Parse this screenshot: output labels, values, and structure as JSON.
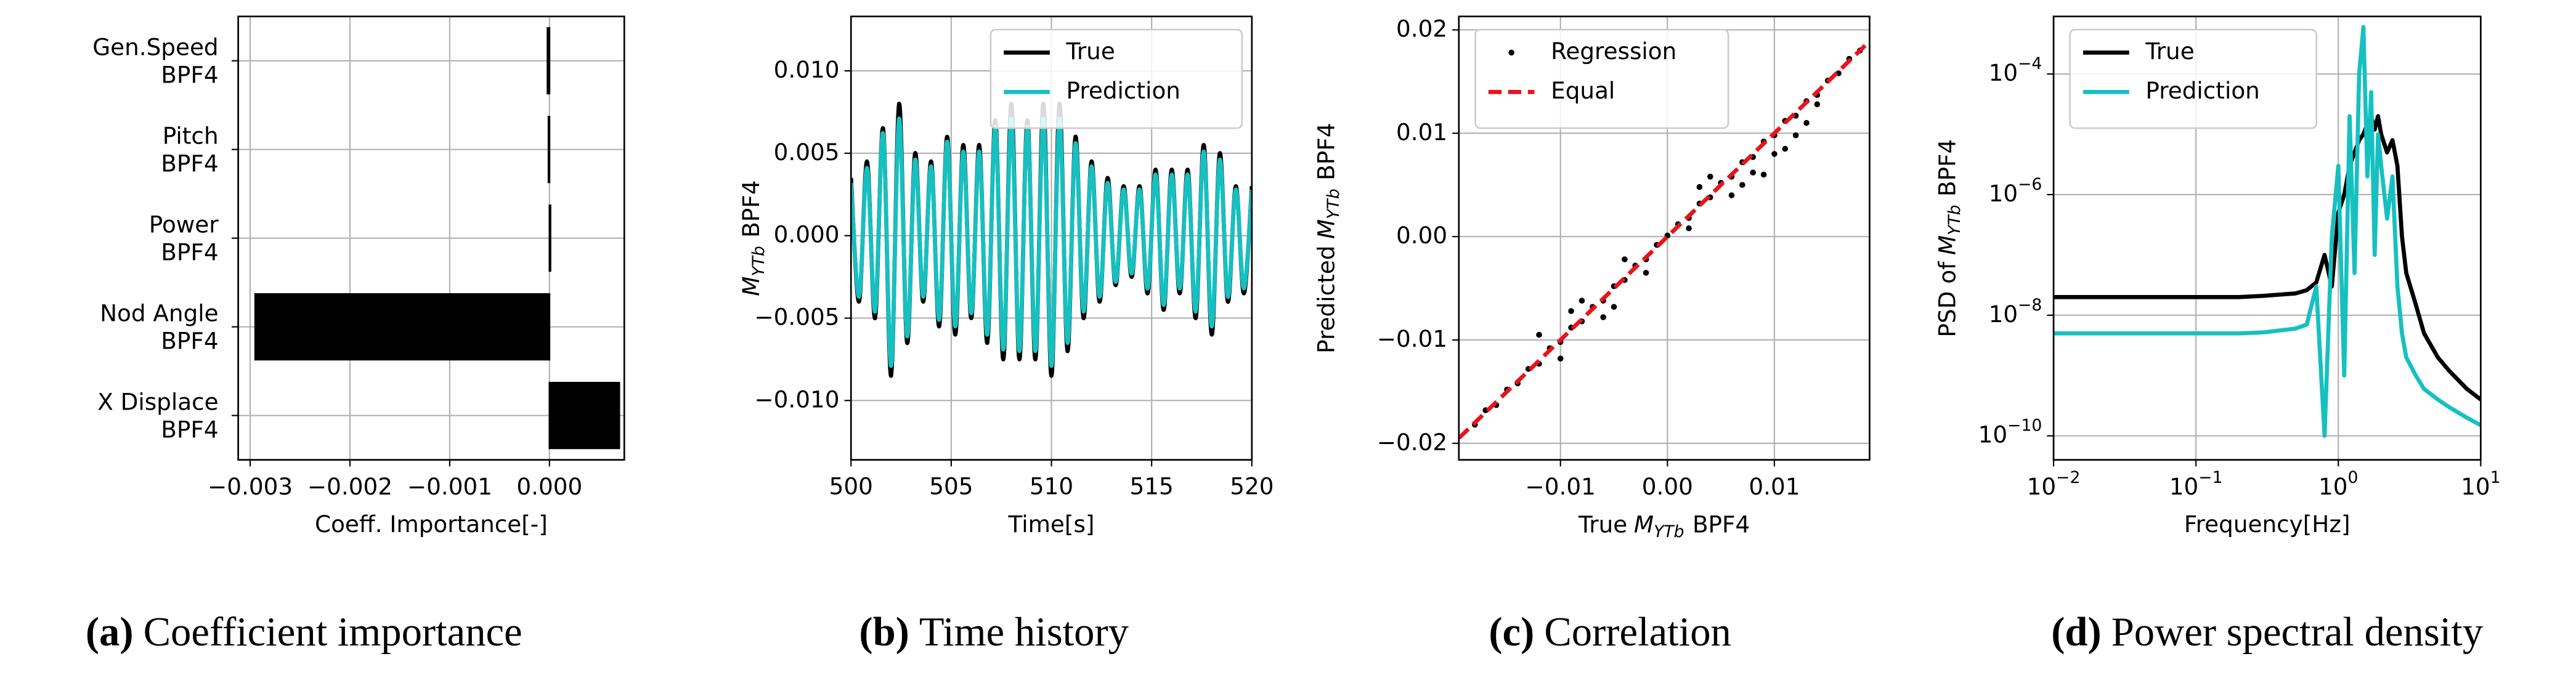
{
  "chart_data": [
    {
      "type": "barh",
      "caption_letter": "(a)",
      "caption": "Coefficient importance",
      "categories": [
        "Gen.Speed\nBPF4",
        "Pitch\nBPF4",
        "Power\nBPF4",
        "Nod Angle\nBPF4",
        "X Displace\nBPF4"
      ],
      "values": [
        -2e-05,
        -1e-05,
        1e-05,
        -0.00295,
        0.0007
      ],
      "color": "#000000",
      "xlabel": "Coeff. Importance[-]",
      "xlim": [
        -0.00312,
        0.00075
      ],
      "xticks": [
        {
          "value": -0.003,
          "label": "−0.003"
        },
        {
          "value": -0.002,
          "label": "−0.002"
        },
        {
          "value": -0.001,
          "label": "−0.001"
        },
        {
          "value": 0,
          "label": "0.000"
        }
      ],
      "grid": true
    },
    {
      "type": "line",
      "caption_letter": "(b)",
      "caption": "Time history",
      "xlabel": "Time[s]",
      "ylabel": {
        "symbol": "M",
        "subscript": "YTb",
        "text": "BPF4"
      },
      "x": [
        500,
        500.4,
        500.8,
        501.2,
        501.6,
        502,
        502.4,
        502.8,
        503.2,
        503.6,
        504,
        504.4,
        504.8,
        505.2,
        505.6,
        506,
        506.4,
        506.8,
        507.2,
        507.6,
        508,
        508.4,
        508.8,
        509.2,
        509.6,
        510,
        510.4,
        510.8,
        511.2,
        511.6,
        512,
        512.4,
        512.8,
        513.2,
        513.6,
        514,
        514.4,
        514.8,
        515.2,
        515.6,
        516,
        516.4,
        516.8,
        517.2,
        517.6,
        518,
        518.4,
        518.8,
        519.2,
        519.6,
        520
      ],
      "series": [
        {
          "name": "True",
          "color": "#000000",
          "values": [
            0.0035,
            -0.004,
            0.0045,
            -0.005,
            0.0065,
            -0.0085,
            0.008,
            -0.0065,
            0.005,
            -0.004,
            0.0045,
            -0.0055,
            0.006,
            -0.006,
            0.0055,
            -0.005,
            0.0055,
            -0.0065,
            0.007,
            -0.0075,
            0.008,
            -0.0075,
            0.007,
            -0.0075,
            0.008,
            -0.0085,
            0.008,
            -0.007,
            0.006,
            -0.005,
            0.0045,
            -0.004,
            0.0035,
            -0.003,
            0.003,
            -0.0025,
            0.003,
            -0.0035,
            0.004,
            -0.0045,
            0.004,
            -0.0035,
            0.004,
            -0.005,
            0.0055,
            -0.006,
            0.005,
            -0.004,
            0.003,
            -0.0035,
            0.003
          ]
        },
        {
          "name": "Prediction",
          "color": "#17c0c0",
          "values": [
            0.0032,
            -0.0037,
            0.0041,
            -0.0046,
            0.0062,
            -0.0079,
            0.0071,
            -0.0061,
            0.0046,
            -0.0037,
            0.0042,
            -0.0051,
            0.0057,
            -0.0055,
            0.0051,
            -0.0047,
            0.0051,
            -0.006,
            0.0066,
            -0.0069,
            0.0071,
            -0.007,
            0.0066,
            -0.007,
            0.0071,
            -0.0079,
            0.0071,
            -0.0065,
            0.0056,
            -0.0046,
            0.0042,
            -0.0037,
            0.0032,
            -0.0028,
            0.0028,
            -0.0023,
            0.0028,
            -0.0032,
            0.0037,
            -0.0042,
            0.0037,
            -0.0032,
            0.0037,
            -0.0046,
            0.0051,
            -0.0055,
            0.0046,
            -0.0037,
            0.0028,
            -0.0032,
            0.0028
          ]
        }
      ],
      "xlim": [
        500,
        520
      ],
      "xticks": [
        500,
        505,
        510,
        515,
        520
      ],
      "ylim": [
        -0.0136,
        0.0133
      ],
      "yticks": [
        {
          "value": -0.01,
          "label": "−0.010"
        },
        {
          "value": -0.005,
          "label": "−0.005"
        },
        {
          "value": 0,
          "label": "0.000"
        },
        {
          "value": 0.005,
          "label": "0.005"
        },
        {
          "value": 0.01,
          "label": "0.010"
        }
      ],
      "grid": true,
      "legend": "upper right"
    },
    {
      "type": "scatter",
      "caption_letter": "(c)",
      "caption": "Correlation",
      "xlabel": {
        "prefix": "True",
        "symbol": "M",
        "subscript": "YTb",
        "text": "BPF4"
      },
      "ylabel": {
        "prefix": "Predicted",
        "symbol": "M",
        "subscript": "YTb",
        "text": "BPF4"
      },
      "series": [
        {
          "name": "Regression",
          "color": "#000000",
          "marker": "dot",
          "x": [
            -0.018,
            -0.017,
            -0.016,
            -0.015,
            -0.014,
            -0.013,
            -0.012,
            -0.011,
            -0.01,
            -0.009,
            -0.008,
            -0.007,
            -0.006,
            -0.005,
            -0.004,
            -0.003,
            -0.002,
            -0.001,
            0,
            0.001,
            0.002,
            0.003,
            0.004,
            0.005,
            0.006,
            0.007,
            0.008,
            0.009,
            0.01,
            0.011,
            0.012,
            0.013,
            0.014,
            0.015,
            0.016,
            0.017,
            0.018,
            -0.012,
            -0.01,
            -0.008,
            -0.006,
            -0.004,
            -0.002,
            0.002,
            0.004,
            0.006,
            0.008,
            0.01,
            0.012,
            0.014,
            0.009,
            0.011,
            0.013,
            -0.009,
            -0.005,
            0.003,
            0.007
          ],
          "y": [
            -0.0182,
            -0.0168,
            -0.0163,
            -0.0148,
            -0.0142,
            -0.0128,
            -0.0123,
            -0.0108,
            -0.0102,
            -0.0088,
            -0.0082,
            -0.0068,
            -0.0062,
            -0.0048,
            -0.0042,
            -0.0028,
            -0.0022,
            -0.0008,
            0.0001,
            0.0012,
            0.0018,
            0.0032,
            0.0038,
            0.0052,
            0.0058,
            0.0072,
            0.0077,
            0.0092,
            0.0098,
            0.0112,
            0.0117,
            0.0131,
            0.0137,
            0.0151,
            0.0158,
            0.0172,
            0.018,
            -0.0095,
            -0.0118,
            -0.0062,
            -0.0078,
            -0.0022,
            -0.0035,
            0.0008,
            0.0058,
            0.004,
            0.0062,
            0.008,
            0.0098,
            0.0128,
            0.006,
            0.0085,
            0.011,
            -0.0072,
            -0.0068,
            0.0048,
            0.005
          ]
        },
        {
          "name": "Equal",
          "color": "#e8141b",
          "marker": "dashed",
          "x": [
            -0.0195,
            0.0189
          ],
          "y": [
            -0.0195,
            0.0189
          ]
        }
      ],
      "xlim": [
        -0.0195,
        0.0189
      ],
      "ylim": [
        -0.0216,
        0.0213
      ],
      "xticks": [
        {
          "value": -0.01,
          "label": "−0.01"
        },
        {
          "value": 0,
          "label": "0.00"
        },
        {
          "value": 0.01,
          "label": "0.01"
        }
      ],
      "yticks": [
        {
          "value": -0.02,
          "label": "−0.02"
        },
        {
          "value": -0.01,
          "label": "−0.01"
        },
        {
          "value": 0,
          "label": "0.00"
        },
        {
          "value": 0.01,
          "label": "0.01"
        },
        {
          "value": 0.02,
          "label": "0.02"
        }
      ],
      "grid": true,
      "legend": "upper left"
    },
    {
      "type": "line",
      "caption_letter": "(d)",
      "caption": "Power spectral density",
      "xlabel": "Frequency[Hz]",
      "ylabel": {
        "prefix": "PSD of",
        "symbol": "M",
        "subscript": "YTb",
        "text": "BPF4"
      },
      "x": [
        0.01,
        0.02,
        0.05,
        0.1,
        0.2,
        0.3,
        0.5,
        0.6,
        0.7,
        0.8,
        0.9,
        1.0,
        1.1,
        1.2,
        1.3,
        1.4,
        1.5,
        1.6,
        1.7,
        1.8,
        1.9,
        2.0,
        2.2,
        2.4,
        2.6,
        2.8,
        3.0,
        3.5,
        4,
        5,
        6,
        8,
        10
      ],
      "series": [
        {
          "name": "True",
          "color": "#000000",
          "values": [
            2e-08,
            2e-08,
            2e-08,
            2e-08,
            2e-08,
            2.1e-08,
            2.3e-08,
            2.6e-08,
            3.5e-08,
            1e-07,
            3e-08,
            5e-07,
            1e-06,
            3e-06,
            5e-06,
            8e-06,
            1e-05,
            1.5e-05,
            2e-05,
            1.2e-05,
            2e-05,
            1e-05,
            5e-06,
            8e-06,
            3e-06,
            2e-07,
            5e-08,
            1.5e-08,
            5e-09,
            2e-09,
            1.2e-09,
            6e-10,
            4e-10
          ]
        },
        {
          "name": "Prediction",
          "color": "#17c0c0",
          "values": [
            5e-09,
            5e-09,
            5e-09,
            5e-09,
            5e-09,
            5.2e-09,
            6e-09,
            7e-09,
            3e-08,
            1e-10,
            2e-07,
            3e-06,
            1e-09,
            2e-05,
            5e-08,
            0.0001,
            0.0006,
            2e-06,
            5e-05,
            1e-07,
            1e-05,
            3e-06,
            4e-07,
            2e-06,
            3e-08,
            5e-09,
            2e-09,
            1e-09,
            6e-10,
            4e-10,
            3e-10,
            2e-10,
            1.5e-10
          ]
        }
      ],
      "xlim": [
        0.01,
        10
      ],
      "xlog": true,
      "ylim": [
        4e-11,
        0.0009
      ],
      "ylog": true,
      "xticks": [
        {
          "value": 0.01,
          "label": "10",
          "sup": "−2"
        },
        {
          "value": 0.1,
          "label": "10",
          "sup": "−1"
        },
        {
          "value": 1,
          "label": "10",
          "sup": "0"
        },
        {
          "value": 10,
          "label": "10",
          "sup": "1"
        }
      ],
      "yticks": [
        {
          "value": 1e-10,
          "label": "10",
          "sup": "−10"
        },
        {
          "value": 1e-08,
          "label": "10",
          "sup": "−8"
        },
        {
          "value": 1e-06,
          "label": "10",
          "sup": "−6"
        },
        {
          "value": 0.0001,
          "label": "10",
          "sup": "−4"
        }
      ],
      "grid": true,
      "legend": "upper left"
    }
  ]
}
